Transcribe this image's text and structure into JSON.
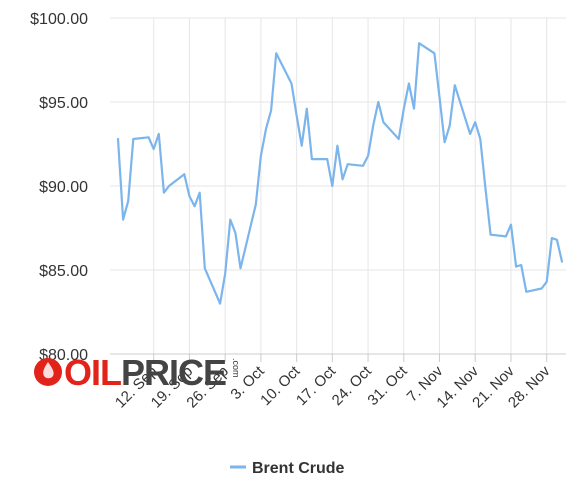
{
  "chart_data": {
    "type": "line",
    "title": "",
    "xlabel": "",
    "ylabel": "",
    "ylim": [
      80,
      100
    ],
    "y_ticks": [
      "$80.00",
      "$85.00",
      "$90.00",
      "$95.00",
      "$100.00"
    ],
    "x_ticks": [
      "12. Sep",
      "19. Sep",
      "26. Sep",
      "3. Oct",
      "10. Oct",
      "17. Oct",
      "24. Oct",
      "31. Oct",
      "7. Nov",
      "14. Nov",
      "21. Nov",
      "28. Nov"
    ],
    "grid": true,
    "legend_position": "bottom",
    "series": [
      {
        "name": "Brent Crude",
        "color": "#7cb5ec",
        "points": [
          [
            "2022-09-05",
            92.8
          ],
          [
            "2022-09-06",
            88.0
          ],
          [
            "2022-09-07",
            89.1
          ],
          [
            "2022-09-08",
            92.8
          ],
          [
            "2022-09-11",
            92.9
          ],
          [
            "2022-09-12",
            92.2
          ],
          [
            "2022-09-13",
            93.1
          ],
          [
            "2022-09-14",
            89.6
          ],
          [
            "2022-09-15",
            90.0
          ],
          [
            "2022-09-18",
            90.7
          ],
          [
            "2022-09-19",
            89.4
          ],
          [
            "2022-09-20",
            88.8
          ],
          [
            "2022-09-21",
            89.6
          ],
          [
            "2022-09-22",
            85.1
          ],
          [
            "2022-09-25",
            83.0
          ],
          [
            "2022-09-26",
            84.8
          ],
          [
            "2022-09-27",
            88.0
          ],
          [
            "2022-09-28",
            87.2
          ],
          [
            "2022-09-29",
            85.1
          ],
          [
            "2022-10-02",
            88.9
          ],
          [
            "2022-10-03",
            91.8
          ],
          [
            "2022-10-04",
            93.4
          ],
          [
            "2022-10-05",
            94.5
          ],
          [
            "2022-10-06",
            97.9
          ],
          [
            "2022-10-09",
            96.1
          ],
          [
            "2022-10-10",
            94.2
          ],
          [
            "2022-10-11",
            92.4
          ],
          [
            "2022-10-12",
            94.6
          ],
          [
            "2022-10-13",
            91.6
          ],
          [
            "2022-10-16",
            91.6
          ],
          [
            "2022-10-17",
            90.0
          ],
          [
            "2022-10-18",
            92.4
          ],
          [
            "2022-10-19",
            90.4
          ],
          [
            "2022-10-20",
            91.3
          ],
          [
            "2022-10-23",
            91.2
          ],
          [
            "2022-10-24",
            91.8
          ],
          [
            "2022-10-25",
            93.6
          ],
          [
            "2022-10-26",
            95.0
          ],
          [
            "2022-10-27",
            93.8
          ],
          [
            "2022-10-30",
            92.8
          ],
          [
            "2022-10-31",
            94.6
          ],
          [
            "2022-11-01",
            96.1
          ],
          [
            "2022-11-02",
            94.6
          ],
          [
            "2022-11-03",
            98.5
          ],
          [
            "2022-11-06",
            97.9
          ],
          [
            "2022-11-07",
            95.3
          ],
          [
            "2022-11-08",
            92.6
          ],
          [
            "2022-11-09",
            93.6
          ],
          [
            "2022-11-10",
            96.0
          ],
          [
            "2022-11-13",
            93.1
          ],
          [
            "2022-11-14",
            93.8
          ],
          [
            "2022-11-15",
            92.8
          ],
          [
            "2022-11-16",
            89.9
          ],
          [
            "2022-11-17",
            87.1
          ],
          [
            "2022-11-20",
            87.0
          ],
          [
            "2022-11-21",
            87.7
          ],
          [
            "2022-11-22",
            85.2
          ],
          [
            "2022-11-23",
            85.3
          ],
          [
            "2022-11-24",
            83.7
          ],
          [
            "2022-11-27",
            83.9
          ],
          [
            "2022-11-28",
            84.3
          ],
          [
            "2022-11-29",
            86.9
          ],
          [
            "2022-11-30",
            86.8
          ],
          [
            "2022-12-01",
            85.5
          ]
        ]
      }
    ]
  },
  "watermark": {
    "text_red": "OIL",
    "text_gray": "PRICE",
    "suffix": ".com",
    "color_red": "#e2231a",
    "color_gray": "#444444"
  }
}
